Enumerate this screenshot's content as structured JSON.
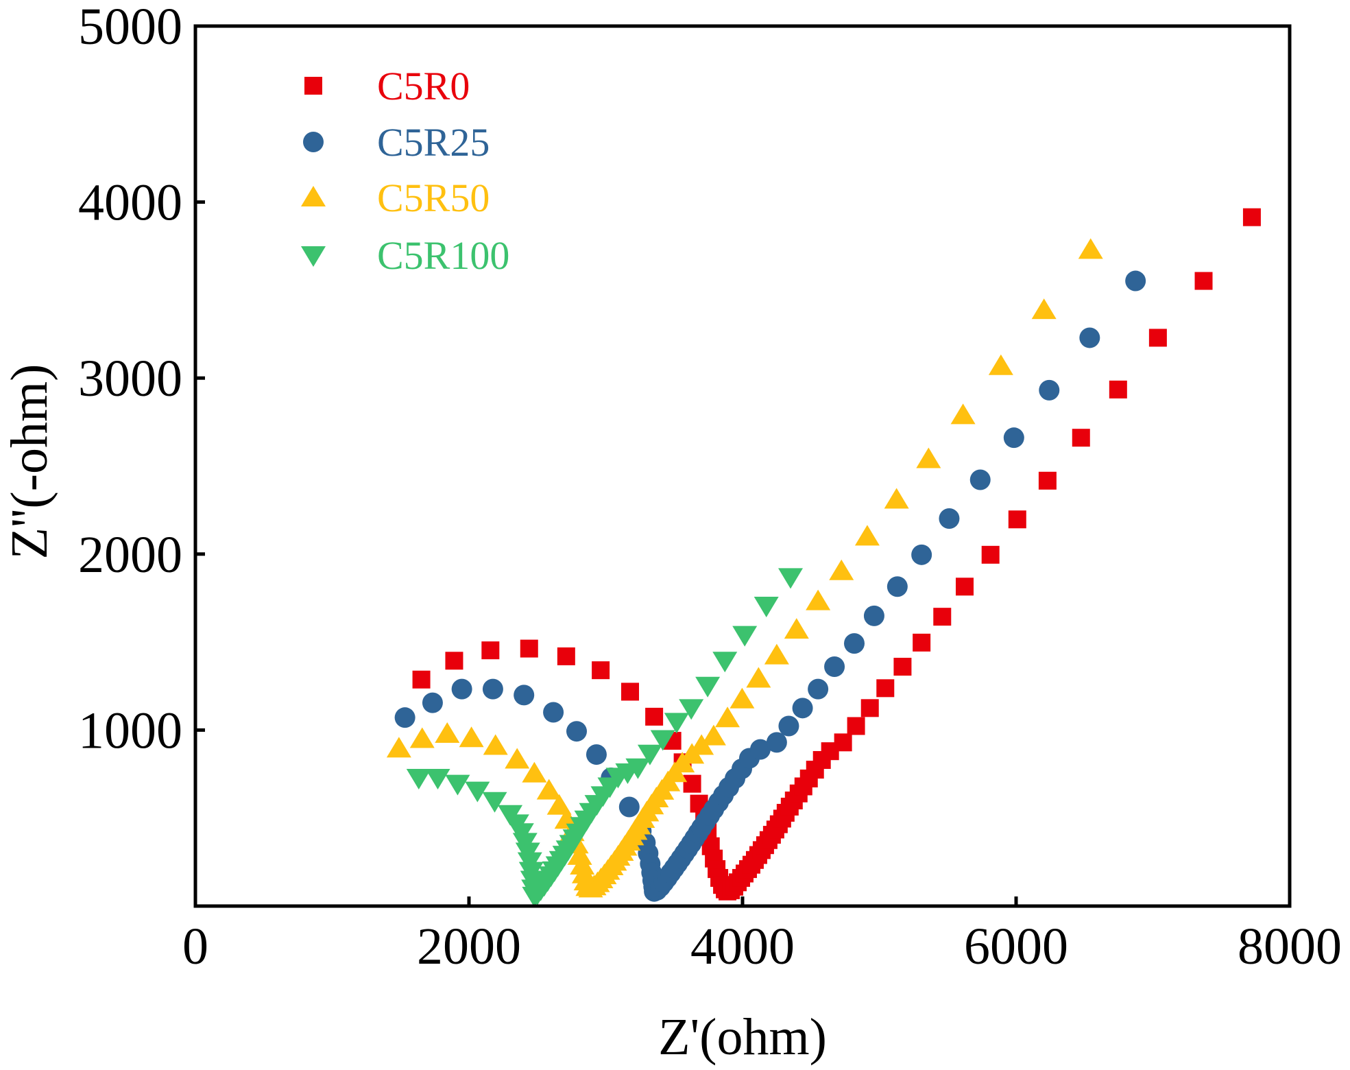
{
  "chart_data": {
    "type": "scatter",
    "title": "",
    "xlabel": "Z'(ohm)",
    "ylabel": "Z''(-ohm)",
    "xlim": [
      0,
      8000
    ],
    "ylim": [
      0,
      5000
    ],
    "xticks": [
      0,
      2000,
      4000,
      6000,
      8000
    ],
    "yticks": [
      1000,
      2000,
      3000,
      4000,
      5000
    ],
    "xtick_labels": [
      "0",
      "2000",
      "4000",
      "6000",
      "8000"
    ],
    "ytick_labels": [
      "1000",
      "2000",
      "3000",
      "4000",
      "5000"
    ],
    "grid": false,
    "legend_position": "top-left",
    "series": [
      {
        "name": "C5R0",
        "marker": "square",
        "color": "#E8000B",
        "points": [
          [
            1652,
            1287
          ],
          [
            1892,
            1394
          ],
          [
            2157,
            1453
          ],
          [
            2440,
            1463
          ],
          [
            2711,
            1419
          ],
          [
            2963,
            1340
          ],
          [
            3178,
            1218
          ],
          [
            3354,
            1076
          ],
          [
            3487,
            939
          ],
          [
            3562,
            817
          ],
          [
            3632,
            695
          ],
          [
            3682,
            582
          ],
          [
            3720,
            500
          ],
          [
            3745,
            420
          ],
          [
            3768,
            340
          ],
          [
            3790,
            270
          ],
          [
            3810,
            210
          ],
          [
            3830,
            160
          ],
          [
            3850,
            120
          ],
          [
            3870,
            95
          ],
          [
            3890,
            83
          ],
          [
            3915,
            90
          ],
          [
            3940,
            110
          ],
          [
            3965,
            135
          ],
          [
            3990,
            160
          ],
          [
            4015,
            185
          ],
          [
            4040,
            210
          ],
          [
            4065,
            235
          ],
          [
            4090,
            262
          ],
          [
            4115,
            290
          ],
          [
            4140,
            318
          ],
          [
            4165,
            346
          ],
          [
            4190,
            375
          ],
          [
            4215,
            405
          ],
          [
            4240,
            435
          ],
          [
            4265,
            465
          ],
          [
            4290,
            497
          ],
          [
            4315,
            530
          ],
          [
            4345,
            565
          ],
          [
            4375,
            600
          ],
          [
            4410,
            640
          ],
          [
            4445,
            680
          ],
          [
            4485,
            725
          ],
          [
            4530,
            775
          ],
          [
            4580,
            830
          ],
          [
            4640,
            880
          ],
          [
            4735,
            930
          ],
          [
            4830,
            1023
          ],
          [
            4931,
            1125
          ],
          [
            5044,
            1238
          ],
          [
            5170,
            1360
          ],
          [
            5309,
            1497
          ],
          [
            5460,
            1644
          ],
          [
            5624,
            1815
          ],
          [
            5813,
            1996
          ],
          [
            6009,
            2197
          ],
          [
            6230,
            2417
          ],
          [
            6475,
            2661
          ],
          [
            6746,
            2935
          ],
          [
            7037,
            3229
          ],
          [
            7371,
            3552
          ],
          [
            7724,
            3914
          ]
        ]
      },
      {
        "name": "C5R25",
        "marker": "circle",
        "color": "#2F6497",
        "points": [
          [
            1532,
            1071
          ],
          [
            1734,
            1155
          ],
          [
            1948,
            1233
          ],
          [
            2175,
            1233
          ],
          [
            2402,
            1199
          ],
          [
            2617,
            1101
          ],
          [
            2787,
            993
          ],
          [
            2932,
            861
          ],
          [
            3039,
            729
          ],
          [
            3172,
            563
          ],
          [
            3260,
            426
          ],
          [
            3290,
            360
          ],
          [
            3310,
            300
          ],
          [
            3325,
            240
          ],
          [
            3335,
            190
          ],
          [
            3343,
            145
          ],
          [
            3350,
            110
          ],
          [
            3354,
            83
          ],
          [
            3375,
            90
          ],
          [
            3400,
            110
          ],
          [
            3425,
            135
          ],
          [
            3450,
            160
          ],
          [
            3475,
            188
          ],
          [
            3500,
            215
          ],
          [
            3525,
            242
          ],
          [
            3550,
            270
          ],
          [
            3575,
            298
          ],
          [
            3600,
            326
          ],
          [
            3625,
            355
          ],
          [
            3650,
            385
          ],
          [
            3675,
            415
          ],
          [
            3700,
            445
          ],
          [
            3730,
            480
          ],
          [
            3760,
            515
          ],
          [
            3790,
            550
          ],
          [
            3825,
            590
          ],
          [
            3860,
            630
          ],
          [
            3900,
            675
          ],
          [
            3945,
            725
          ],
          [
            3995,
            780
          ],
          [
            4050,
            840
          ],
          [
            4130,
            890
          ],
          [
            4250,
            930
          ],
          [
            4338,
            1023
          ],
          [
            4439,
            1125
          ],
          [
            4552,
            1233
          ],
          [
            4672,
            1360
          ],
          [
            4817,
            1492
          ],
          [
            4962,
            1649
          ],
          [
            5132,
            1815
          ],
          [
            5309,
            1996
          ],
          [
            5511,
            2202
          ],
          [
            5738,
            2422
          ],
          [
            5984,
            2661
          ],
          [
            6242,
            2931
          ],
          [
            6538,
            3229
          ],
          [
            6873,
            3552
          ]
        ]
      },
      {
        "name": "C5R50",
        "marker": "triangle-up",
        "color": "#FFC010",
        "points": [
          [
            1488,
            895
          ],
          [
            1658,
            949
          ],
          [
            1841,
            978
          ],
          [
            2018,
            954
          ],
          [
            2194,
            910
          ],
          [
            2352,
            832
          ],
          [
            2478,
            753
          ],
          [
            2585,
            656
          ],
          [
            2660,
            570
          ],
          [
            2715,
            490
          ],
          [
            2755,
            420
          ],
          [
            2785,
            350
          ],
          [
            2810,
            285
          ],
          [
            2828,
            230
          ],
          [
            2842,
            180
          ],
          [
            2855,
            140
          ],
          [
            2869,
            108
          ],
          [
            2890,
            100
          ],
          [
            2915,
            112
          ],
          [
            2940,
            130
          ],
          [
            2965,
            152
          ],
          [
            2990,
            175
          ],
          [
            3015,
            200
          ],
          [
            3040,
            226
          ],
          [
            3065,
            252
          ],
          [
            3090,
            280
          ],
          [
            3115,
            308
          ],
          [
            3140,
            337
          ],
          [
            3165,
            366
          ],
          [
            3190,
            396
          ],
          [
            3215,
            427
          ],
          [
            3240,
            458
          ],
          [
            3270,
            495
          ],
          [
            3300,
            532
          ],
          [
            3335,
            572
          ],
          [
            3370,
            612
          ],
          [
            3410,
            655
          ],
          [
            3455,
            703
          ],
          [
            3505,
            755
          ],
          [
            3560,
            810
          ],
          [
            3630,
            860
          ],
          [
            3700,
            910
          ],
          [
            3789,
            964
          ],
          [
            3890,
            1067
          ],
          [
            3997,
            1174
          ],
          [
            4117,
            1292
          ],
          [
            4250,
            1424
          ],
          [
            4395,
            1570
          ],
          [
            4552,
            1732
          ],
          [
            4723,
            1903
          ],
          [
            4912,
            2099
          ],
          [
            5126,
            2309
          ],
          [
            5360,
            2539
          ],
          [
            5612,
            2789
          ],
          [
            5889,
            3068
          ],
          [
            6204,
            3386
          ],
          [
            6545,
            3728
          ]
        ]
      },
      {
        "name": "C5R100",
        "marker": "triangle-down",
        "color": "#3CC26E",
        "points": [
          [
            1633,
            729
          ],
          [
            1772,
            729
          ],
          [
            1917,
            695
          ],
          [
            2062,
            656
          ],
          [
            2188,
            597
          ],
          [
            2301,
            523
          ],
          [
            2350,
            470
          ],
          [
            2385,
            420
          ],
          [
            2410,
            365
          ],
          [
            2430,
            310
          ],
          [
            2445,
            255
          ],
          [
            2455,
            200
          ],
          [
            2465,
            150
          ],
          [
            2472,
            100
          ],
          [
            2478,
            59
          ],
          [
            2500,
            70
          ],
          [
            2525,
            95
          ],
          [
            2550,
            120
          ],
          [
            2575,
            147
          ],
          [
            2600,
            175
          ],
          [
            2625,
            203
          ],
          [
            2650,
            232
          ],
          [
            2675,
            262
          ],
          [
            2700,
            292
          ],
          [
            2725,
            322
          ],
          [
            2750,
            353
          ],
          [
            2775,
            385
          ],
          [
            2800,
            418
          ],
          [
            2830,
            455
          ],
          [
            2860,
            492
          ],
          [
            2895,
            535
          ],
          [
            2935,
            580
          ],
          [
            2980,
            630
          ],
          [
            3030,
            680
          ],
          [
            3090,
            735
          ],
          [
            3160,
            760
          ],
          [
            3235,
            788
          ],
          [
            3323,
            866
          ],
          [
            3417,
            949
          ],
          [
            3518,
            1047
          ],
          [
            3625,
            1125
          ],
          [
            3745,
            1252
          ],
          [
            3871,
            1394
          ],
          [
            4016,
            1541
          ],
          [
            4174,
            1707
          ],
          [
            4351,
            1869
          ]
        ]
      }
    ]
  }
}
